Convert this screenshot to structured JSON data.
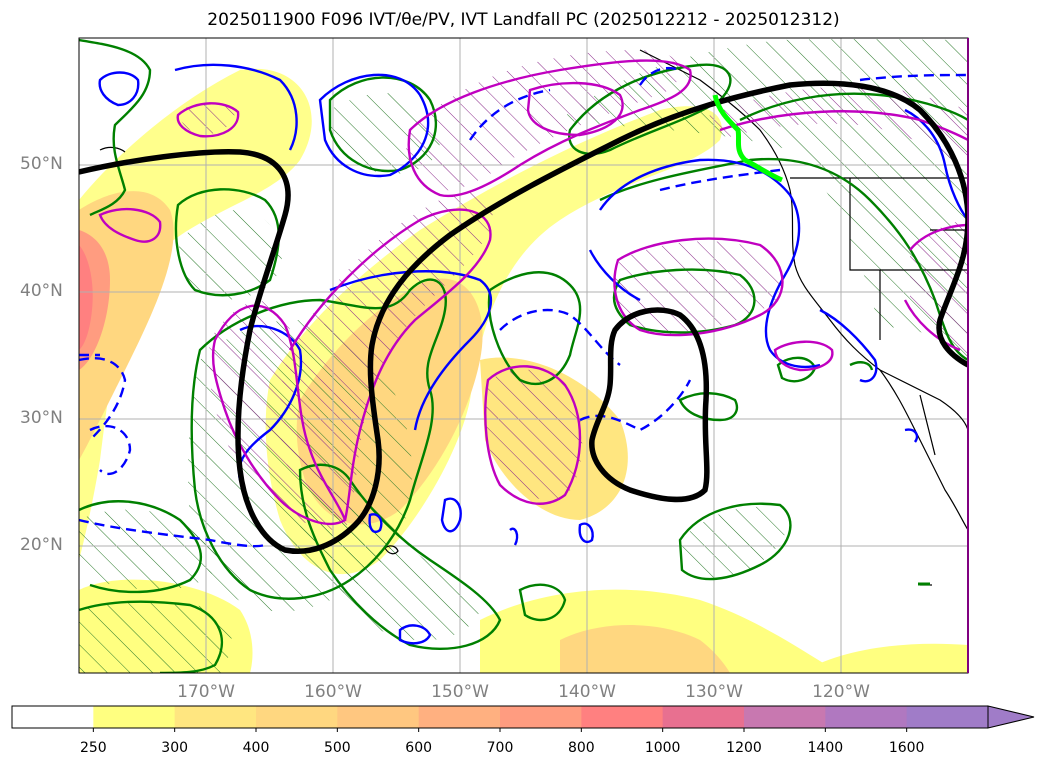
{
  "title": "2025011900 F096 IVT/θe/PV, IVT Landfall PC (2025012212 - 2025012312)",
  "lat_labels": [
    "50°N",
    "40°N",
    "30°N",
    "20°N"
  ],
  "lon_labels": [
    "170°W",
    "160°W",
    "150°W",
    "140°W",
    "130°W",
    "120°W"
  ],
  "colorbar": {
    "ticks": [
      "250",
      "300",
      "400",
      "500",
      "600",
      "700",
      "800",
      "1000",
      "1200",
      "1400",
      "1600"
    ],
    "colors": [
      "#ffffff",
      "#ffff80",
      "#ffe680",
      "#ffd780",
      "#ffc780",
      "#ffb080",
      "#ff9c80",
      "#ff8080",
      "#e87090",
      "#c878b0",
      "#b078c0",
      "#a07cc8"
    ]
  },
  "colors": {
    "pv_contour": "#008000",
    "theta_contour": "#0000ff",
    "ivt_pc_contour": "#c000c0",
    "main_contour": "#000000",
    "landfall": "#00ff00",
    "grid": "#b0b0b0"
  }
}
